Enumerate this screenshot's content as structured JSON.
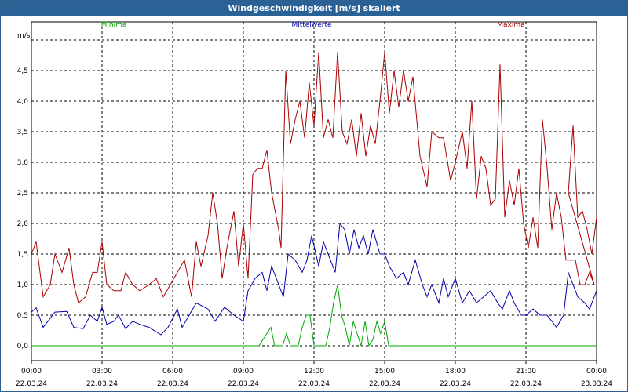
{
  "window": {
    "title": "Windgeschwindigkeit [m/s] skaliert"
  },
  "chart_data": {
    "type": "line",
    "title": "Windgeschwindigkeit [m/s] skaliert",
    "ylabel": "m/s",
    "ylim": [
      -0.25,
      5.0
    ],
    "xlim_hours": [
      0,
      24
    ],
    "grid": true,
    "legend_position": "top",
    "y_ticks": [
      "0,0",
      "0,5",
      "1,0",
      "1,5",
      "2,0",
      "2,5",
      "3,0",
      "3,5",
      "4,0",
      "4,5"
    ],
    "x_ticks": [
      {
        "time": "00:00",
        "date": "22.03.24"
      },
      {
        "time": "03:00",
        "date": "22.03.24"
      },
      {
        "time": "06:00",
        "date": "22.03.24"
      },
      {
        "time": "09:00",
        "date": "22.03.24"
      },
      {
        "time": "12:00",
        "date": "22.03.24"
      },
      {
        "time": "15:00",
        "date": "22.03.24"
      },
      {
        "time": "18:00",
        "date": "22.03.24"
      },
      {
        "time": "21:00",
        "date": "22.03.24"
      },
      {
        "time": "00:00",
        "date": "23.03.24"
      }
    ],
    "series": [
      {
        "name": "Minima",
        "color": "#00aa00",
        "points": [
          [
            0,
            0
          ],
          [
            9.67,
            0
          ],
          [
            9.83,
            0.1
          ],
          [
            10.0,
            0.2
          ],
          [
            10.17,
            0.3
          ],
          [
            10.33,
            0
          ],
          [
            10.67,
            0
          ],
          [
            10.83,
            0.2
          ],
          [
            11.0,
            0
          ],
          [
            11.33,
            0
          ],
          [
            11.5,
            0.3
          ],
          [
            11.67,
            0.5
          ],
          [
            11.83,
            0.5
          ],
          [
            12.0,
            0
          ],
          [
            12.5,
            0
          ],
          [
            12.67,
            0.3
          ],
          [
            12.83,
            0.7
          ],
          [
            13.0,
            1.0
          ],
          [
            13.17,
            0.5
          ],
          [
            13.33,
            0.3
          ],
          [
            13.5,
            0
          ],
          [
            13.67,
            0.4
          ],
          [
            13.83,
            0.2
          ],
          [
            14.0,
            0
          ],
          [
            14.17,
            0.4
          ],
          [
            14.33,
            0
          ],
          [
            14.5,
            0.1
          ],
          [
            14.67,
            0.4
          ],
          [
            14.83,
            0.2
          ],
          [
            15.0,
            0.4
          ],
          [
            15.17,
            0
          ],
          [
            24,
            0
          ]
        ]
      },
      {
        "name": "Mittelwerte",
        "color": "#0000aa",
        "points": [
          [
            0,
            0.55
          ],
          [
            0.2,
            0.62
          ],
          [
            0.5,
            0.3
          ],
          [
            1.0,
            0.55
          ],
          [
            1.5,
            0.56
          ],
          [
            1.8,
            0.3
          ],
          [
            2.2,
            0.28
          ],
          [
            2.5,
            0.5
          ],
          [
            2.8,
            0.4
          ],
          [
            3.0,
            0.63
          ],
          [
            3.2,
            0.35
          ],
          [
            3.5,
            0.4
          ],
          [
            3.7,
            0.5
          ],
          [
            4.0,
            0.28
          ],
          [
            4.3,
            0.4
          ],
          [
            4.6,
            0.35
          ],
          [
            5.0,
            0.3
          ],
          [
            5.5,
            0.18
          ],
          [
            5.8,
            0.3
          ],
          [
            6.2,
            0.6
          ],
          [
            6.4,
            0.3
          ],
          [
            6.7,
            0.5
          ],
          [
            7.0,
            0.7
          ],
          [
            7.5,
            0.6
          ],
          [
            7.8,
            0.4
          ],
          [
            8.2,
            0.63
          ],
          [
            8.6,
            0.5
          ],
          [
            9.0,
            0.4
          ],
          [
            9.2,
            0.9
          ],
          [
            9.5,
            1.1
          ],
          [
            9.8,
            1.2
          ],
          [
            10.0,
            0.9
          ],
          [
            10.2,
            1.3
          ],
          [
            10.5,
            1.0
          ],
          [
            10.7,
            0.8
          ],
          [
            10.9,
            1.5
          ],
          [
            11.2,
            1.4
          ],
          [
            11.5,
            1.2
          ],
          [
            11.7,
            1.4
          ],
          [
            11.9,
            1.8
          ],
          [
            12.2,
            1.3
          ],
          [
            12.4,
            1.7
          ],
          [
            12.7,
            1.4
          ],
          [
            12.9,
            1.2
          ],
          [
            13.1,
            2.0
          ],
          [
            13.3,
            1.9
          ],
          [
            13.5,
            1.5
          ],
          [
            13.7,
            1.9
          ],
          [
            13.9,
            1.6
          ],
          [
            14.1,
            1.8
          ],
          [
            14.3,
            1.5
          ],
          [
            14.5,
            1.9
          ],
          [
            14.8,
            1.5
          ],
          [
            15.0,
            1.5
          ],
          [
            15.2,
            1.3
          ],
          [
            15.5,
            1.1
          ],
          [
            15.8,
            1.2
          ],
          [
            16.0,
            1.0
          ],
          [
            16.3,
            1.4
          ],
          [
            16.6,
            1.0
          ],
          [
            16.8,
            0.8
          ],
          [
            17.0,
            1.0
          ],
          [
            17.3,
            0.7
          ],
          [
            17.5,
            1.1
          ],
          [
            17.7,
            0.8
          ],
          [
            18.0,
            1.1
          ],
          [
            18.3,
            0.7
          ],
          [
            18.6,
            0.9
          ],
          [
            18.9,
            0.7
          ],
          [
            19.2,
            0.8
          ],
          [
            19.5,
            0.9
          ],
          [
            19.8,
            0.7
          ],
          [
            20.0,
            0.6
          ],
          [
            20.3,
            0.9
          ],
          [
            20.5,
            0.7
          ],
          [
            20.8,
            0.5
          ],
          [
            21.0,
            0.5
          ],
          [
            21.3,
            0.6
          ],
          [
            21.6,
            0.5
          ],
          [
            21.9,
            0.5
          ],
          [
            22.1,
            0.4
          ],
          [
            22.3,
            0.3
          ],
          [
            22.6,
            0.5
          ],
          [
            22.8,
            1.2
          ],
          [
            23.0,
            1.0
          ],
          [
            23.2,
            0.8
          ],
          [
            23.5,
            0.7
          ],
          [
            23.7,
            0.6
          ],
          [
            24.0,
            0.9
          ]
        ]
      },
      {
        "name": "Maxima",
        "color": "#aa0000",
        "points": [
          [
            0,
            1.5
          ],
          [
            0.2,
            1.7
          ],
          [
            0.5,
            0.8
          ],
          [
            0.8,
            1.0
          ],
          [
            1.0,
            1.5
          ],
          [
            1.3,
            1.2
          ],
          [
            1.6,
            1.6
          ],
          [
            1.8,
            1.0
          ],
          [
            2.0,
            0.7
          ],
          [
            2.3,
            0.8
          ],
          [
            2.6,
            1.2
          ],
          [
            2.8,
            1.2
          ],
          [
            3.0,
            1.7
          ],
          [
            3.2,
            1.0
          ],
          [
            3.5,
            0.9
          ],
          [
            3.8,
            0.9
          ],
          [
            4.0,
            1.2
          ],
          [
            4.3,
            1.0
          ],
          [
            4.6,
            0.9
          ],
          [
            5.0,
            1.0
          ],
          [
            5.3,
            1.1
          ],
          [
            5.6,
            0.8
          ],
          [
            5.9,
            1.0
          ],
          [
            6.2,
            1.2
          ],
          [
            6.5,
            1.4
          ],
          [
            6.8,
            0.8
          ],
          [
            7.0,
            1.7
          ],
          [
            7.2,
            1.3
          ],
          [
            7.5,
            1.8
          ],
          [
            7.7,
            2.5
          ],
          [
            7.9,
            2.0
          ],
          [
            8.1,
            1.1
          ],
          [
            8.3,
            1.6
          ],
          [
            8.6,
            2.2
          ],
          [
            8.8,
            1.3
          ],
          [
            9.0,
            2.0
          ],
          [
            9.2,
            1.1
          ],
          [
            9.4,
            2.8
          ],
          [
            9.6,
            2.9
          ],
          [
            9.8,
            2.9
          ],
          [
            10.0,
            3.2
          ],
          [
            10.2,
            2.5
          ],
          [
            10.5,
            1.9
          ],
          [
            10.6,
            1.6
          ],
          [
            10.8,
            4.5
          ],
          [
            11.0,
            3.3
          ],
          [
            11.2,
            3.7
          ],
          [
            11.4,
            4.0
          ],
          [
            11.6,
            3.4
          ],
          [
            11.8,
            4.3
          ],
          [
            12.0,
            3.6
          ],
          [
            12.2,
            4.8
          ],
          [
            12.4,
            3.4
          ],
          [
            12.6,
            3.7
          ],
          [
            12.8,
            3.4
          ],
          [
            13.0,
            4.8
          ],
          [
            13.2,
            3.5
          ],
          [
            13.4,
            3.3
          ],
          [
            13.6,
            3.7
          ],
          [
            13.8,
            3.1
          ],
          [
            14.0,
            3.8
          ],
          [
            14.2,
            3.1
          ],
          [
            14.4,
            3.6
          ],
          [
            14.6,
            3.3
          ],
          [
            14.8,
            4.0
          ],
          [
            15.0,
            4.8
          ],
          [
            15.2,
            3.8
          ],
          [
            15.4,
            4.5
          ],
          [
            15.6,
            3.9
          ],
          [
            15.8,
            4.5
          ],
          [
            16.0,
            4.0
          ],
          [
            16.2,
            4.4
          ],
          [
            16.5,
            3.1
          ],
          [
            16.8,
            2.6
          ],
          [
            17.0,
            3.5
          ],
          [
            17.3,
            3.4
          ],
          [
            17.5,
            3.4
          ],
          [
            17.8,
            2.7
          ],
          [
            18.0,
            3.0
          ],
          [
            18.3,
            3.5
          ],
          [
            18.5,
            2.9
          ],
          [
            18.7,
            4.0
          ],
          [
            18.9,
            2.4
          ],
          [
            19.1,
            3.1
          ],
          [
            19.3,
            2.9
          ],
          [
            19.5,
            2.3
          ],
          [
            19.7,
            2.4
          ],
          [
            19.9,
            4.6
          ],
          [
            20.1,
            2.1
          ],
          [
            20.3,
            2.7
          ],
          [
            20.5,
            2.3
          ],
          [
            20.7,
            2.9
          ],
          [
            20.9,
            2.0
          ],
          [
            21.1,
            1.6
          ],
          [
            21.3,
            2.1
          ],
          [
            21.5,
            1.6
          ],
          [
            21.7,
            3.7
          ],
          [
            21.9,
            2.9
          ],
          [
            22.1,
            1.9
          ],
          [
            22.3,
            2.5
          ],
          [
            22.5,
            2.1
          ],
          [
            22.7,
            1.4
          ],
          [
            22.9,
            1.4
          ],
          [
            23.1,
            1.4
          ],
          [
            23.3,
            1.0
          ],
          [
            23.5,
            1.0
          ],
          [
            23.7,
            1.2
          ],
          [
            23.9,
            1.0
          ],
          [
            24.1,
            2.5
          ],
          [
            24.3,
            3.6
          ],
          [
            24.5,
            2.1
          ],
          [
            24.7,
            2.2
          ],
          [
            24.9,
            1.9
          ],
          [
            25.1,
            1.5
          ],
          [
            25.3,
            2.1
          ]
        ]
      }
    ]
  }
}
